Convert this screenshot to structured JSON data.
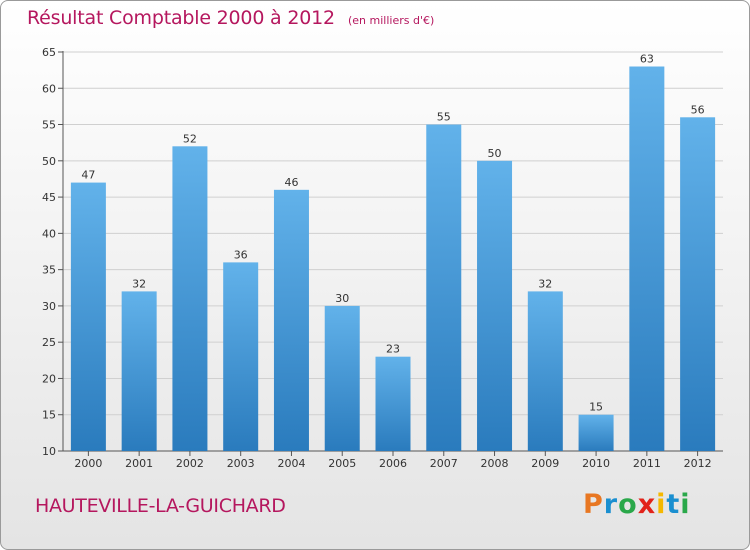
{
  "header": {
    "title": "Résultat Comptable 2000 à 2012",
    "unit_note": "(en milliers d'€)"
  },
  "footer": {
    "commune": "HAUTEVILLE-LA-GUICHARD",
    "brand": "Proxiti",
    "brand_colors": [
      "#e87722",
      "#1a8fd0",
      "#2aa84a",
      "#e2231a",
      "#f5b800",
      "#1a8fd0",
      "#2aa84a"
    ]
  },
  "colors": {
    "title": "#b5175e",
    "bar_light": "#62b2ea",
    "bar_dark": "#2a7bbd",
    "axis": "#555555",
    "grid": "#d0d0d0"
  },
  "chart_data": {
    "type": "bar",
    "title": "Résultat Comptable 2000 à 2012",
    "xlabel": "",
    "ylabel": "",
    "ylim": [
      10,
      65
    ],
    "yticks": [
      10,
      15,
      20,
      25,
      30,
      35,
      40,
      45,
      50,
      55,
      60,
      65
    ],
    "grid": true,
    "categories": [
      "2000",
      "2001",
      "2002",
      "2003",
      "2004",
      "2005",
      "2006",
      "2007",
      "2008",
      "2009",
      "2010",
      "2011",
      "2012"
    ],
    "values": [
      47,
      32,
      52,
      36,
      46,
      30,
      23,
      55,
      50,
      32,
      15,
      63,
      56
    ]
  }
}
